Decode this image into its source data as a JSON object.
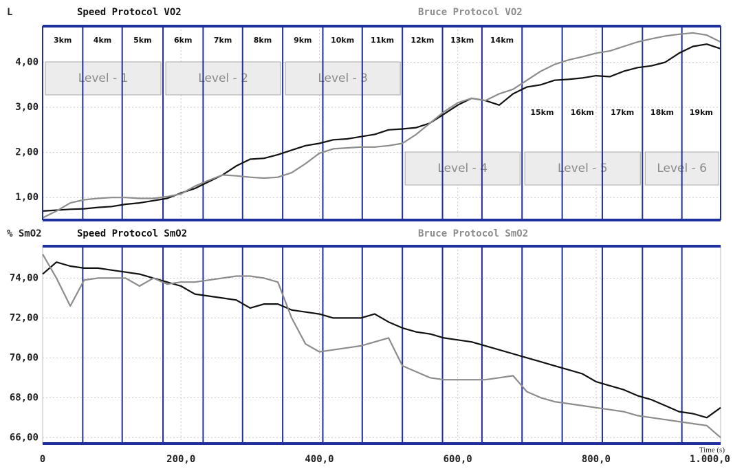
{
  "chart_data": [
    {
      "type": "line",
      "y_label": "L",
      "x": [
        0,
        20,
        40,
        60,
        80,
        100,
        120,
        140,
        160,
        180,
        200,
        220,
        240,
        260,
        280,
        300,
        320,
        340,
        360,
        380,
        400,
        420,
        440,
        460,
        480,
        500,
        520,
        540,
        560,
        580,
        600,
        620,
        640,
        660,
        680,
        700,
        720,
        740,
        760,
        780,
        800,
        820,
        840,
        860,
        880,
        900,
        920,
        940,
        960,
        980
      ],
      "xlim": [
        0,
        980
      ],
      "ylim": [
        0.5,
        4.8
      ],
      "yticks": [
        {
          "value": 1,
          "label": "1,00"
        },
        {
          "value": 2,
          "label": "2,00"
        },
        {
          "value": 3,
          "label": "3,00"
        },
        {
          "value": 4,
          "label": "4,00"
        }
      ],
      "grid": true,
      "stage_bounds": [
        58,
        115,
        174,
        232,
        289,
        347,
        405,
        462,
        520,
        578,
        635,
        693,
        751,
        809,
        867,
        924
      ],
      "stage_labels": [
        "3km",
        "4km",
        "5km",
        "6km",
        "7km",
        "8km",
        "9km",
        "10km",
        "11km",
        "12km",
        "13km",
        "14km",
        "15km",
        "16km",
        "17km",
        "18km",
        "19km"
      ],
      "levels": [
        "Level - 1",
        "Level - 2",
        "Level - 3",
        "Level - 4",
        "Level - 5",
        "Level - 6"
      ],
      "series": [
        {
          "name": "Speed Protocol VO2",
          "color": "#111111",
          "values": [
            0.7,
            0.72,
            0.74,
            0.75,
            0.78,
            0.8,
            0.85,
            0.88,
            0.93,
            0.98,
            1.1,
            1.2,
            1.35,
            1.5,
            1.7,
            1.85,
            1.87,
            1.95,
            2.05,
            2.15,
            2.2,
            2.28,
            2.3,
            2.35,
            2.4,
            2.5,
            2.52,
            2.55,
            2.65,
            2.85,
            3.05,
            3.2,
            3.15,
            3.05,
            3.3,
            3.45,
            3.5,
            3.6,
            3.62,
            3.65,
            3.7,
            3.68,
            3.8,
            3.88,
            3.92,
            4.0,
            4.2,
            4.35,
            4.4,
            4.3
          ]
        },
        {
          "name": "Bruce Protocol VO2",
          "color": "#8c8c8c",
          "values": [
            0.55,
            0.7,
            0.88,
            0.95,
            0.98,
            1.0,
            1.0,
            0.98,
            0.98,
            1.02,
            1.08,
            1.25,
            1.38,
            1.5,
            1.48,
            1.45,
            1.43,
            1.45,
            1.55,
            1.75,
            1.98,
            2.08,
            2.1,
            2.12,
            2.12,
            2.15,
            2.2,
            2.4,
            2.65,
            2.9,
            3.1,
            3.2,
            3.15,
            3.3,
            3.4,
            3.6,
            3.8,
            3.95,
            4.05,
            4.12,
            4.2,
            4.25,
            4.35,
            4.45,
            4.52,
            4.58,
            4.62,
            4.65,
            4.6,
            4.45
          ]
        }
      ]
    },
    {
      "type": "line",
      "y_label": "% SmO2",
      "x_label": "Time (s)",
      "x": [
        0,
        20,
        40,
        60,
        80,
        100,
        120,
        140,
        160,
        180,
        200,
        220,
        240,
        260,
        280,
        300,
        320,
        340,
        360,
        380,
        400,
        420,
        440,
        460,
        480,
        500,
        520,
        540,
        560,
        580,
        600,
        620,
        640,
        660,
        680,
        700,
        720,
        740,
        760,
        780,
        800,
        820,
        840,
        860,
        880,
        900,
        920,
        940,
        960,
        980
      ],
      "xlim": [
        0,
        980
      ],
      "ylim": [
        65.7,
        75.6
      ],
      "xticks": [
        0,
        {
          "value": 200,
          "label": "200,0"
        },
        {
          "value": 400,
          "label": "400,0"
        },
        {
          "value": 600,
          "label": "600,0"
        },
        {
          "value": 800,
          "label": "800,0"
        },
        {
          "value": 1000,
          "label": "1.000,0"
        }
      ],
      "yticks": [
        {
          "value": 66,
          "label": "66,00"
        },
        {
          "value": 68,
          "label": "68,00"
        },
        {
          "value": 70,
          "label": "70,00"
        },
        {
          "value": 72,
          "label": "72,00"
        },
        {
          "value": 74,
          "label": "74,00"
        }
      ],
      "grid": true,
      "stage_bounds": [
        58,
        115,
        174,
        232,
        289,
        347,
        405,
        462,
        520,
        578,
        635,
        693,
        751,
        809,
        867,
        924
      ],
      "series": [
        {
          "name": "Speed Protocol SmO2",
          "color": "#111111",
          "values": [
            74.2,
            74.8,
            74.6,
            74.5,
            74.5,
            74.4,
            74.3,
            74.2,
            74.0,
            73.8,
            73.6,
            73.2,
            73.1,
            73.0,
            72.9,
            72.5,
            72.7,
            72.7,
            72.4,
            72.3,
            72.2,
            72.0,
            72.0,
            72.0,
            72.2,
            71.8,
            71.5,
            71.3,
            71.2,
            71.0,
            70.9,
            70.8,
            70.6,
            70.4,
            70.2,
            70.0,
            69.8,
            69.6,
            69.4,
            69.2,
            68.8,
            68.6,
            68.4,
            68.1,
            67.9,
            67.6,
            67.3,
            67.2,
            67.0,
            67.5
          ]
        },
        {
          "name": "Bruce Protocol SmO2",
          "color": "#8c8c8c",
          "values": [
            75.2,
            74.0,
            72.6,
            73.9,
            74.0,
            74.0,
            74.0,
            73.6,
            74.0,
            73.7,
            73.8,
            73.8,
            73.9,
            74.0,
            74.1,
            74.1,
            74.0,
            73.8,
            72.0,
            70.7,
            70.3,
            70.4,
            70.5,
            70.6,
            70.8,
            71.0,
            69.6,
            69.3,
            69.0,
            68.9,
            68.9,
            68.9,
            68.9,
            69.0,
            69.1,
            68.3,
            68.0,
            67.8,
            67.7,
            67.6,
            67.5,
            67.4,
            67.3,
            67.1,
            67.0,
            66.9,
            66.8,
            66.7,
            66.6,
            66.0
          ]
        }
      ]
    }
  ]
}
